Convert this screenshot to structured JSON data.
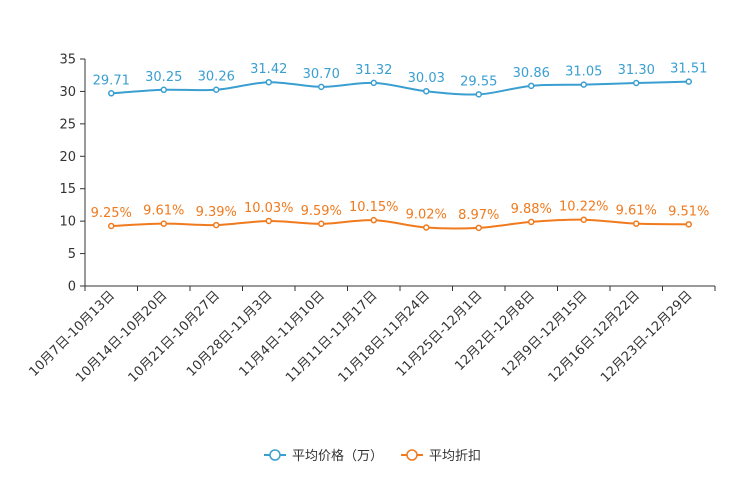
{
  "chart_data": {
    "type": "line",
    "categories": [
      "10月7日-10月13日",
      "10月14日-10月20日",
      "10月21日-10月27日",
      "10月28日-11月3日",
      "11月4日-11月10日",
      "11月11日-11月17日",
      "11月18日-11月24日",
      "11月25日-12月1日",
      "12月2日-12月8日",
      "12月9日-12月15日",
      "12月16日-12月22日",
      "12月23日-12月29日"
    ],
    "series": [
      {
        "name": "平均价格（万）",
        "color": "#3a9fd0",
        "values": [
          29.71,
          30.25,
          30.26,
          31.42,
          30.7,
          31.32,
          30.03,
          29.55,
          30.86,
          31.05,
          31.3,
          31.51
        ],
        "labels": [
          "29.71",
          "30.25",
          "30.26",
          "31.42",
          "30.70",
          "31.32",
          "30.03",
          "29.55",
          "30.86",
          "31.05",
          "31.30",
          "31.51"
        ]
      },
      {
        "name": "平均折扣",
        "color": "#f07a1e",
        "values": [
          9.25,
          9.61,
          9.39,
          10.03,
          9.59,
          10.15,
          9.02,
          8.97,
          9.88,
          10.22,
          9.61,
          9.51
        ],
        "labels": [
          "9.25%",
          "9.61%",
          "9.39%",
          "10.03%",
          "9.59%",
          "10.15%",
          "9.02%",
          "8.97%",
          "9.88%",
          "10.22%",
          "9.61%",
          "9.51%"
        ]
      }
    ],
    "ylim": [
      0,
      35
    ],
    "yticks": [
      0,
      5,
      10,
      15,
      20,
      25,
      30,
      35
    ],
    "grid": false,
    "legend_position": "bottom-center",
    "title": "",
    "xlabel": "",
    "ylabel": ""
  }
}
